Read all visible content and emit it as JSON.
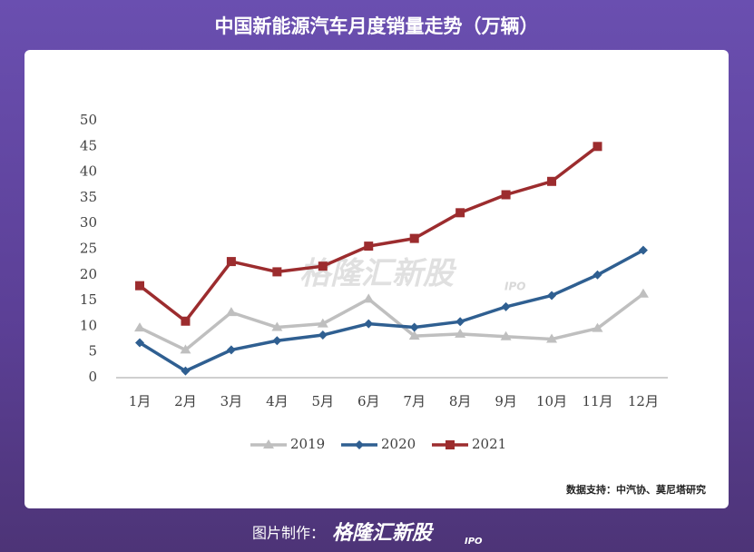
{
  "chart_data": {
    "type": "line",
    "title": "中国新能源汽车月度销量走势（万辆）",
    "categories": [
      "1月",
      "2月",
      "3月",
      "4月",
      "5月",
      "6月",
      "7月",
      "8月",
      "9月",
      "10月",
      "11月",
      "12月"
    ],
    "series": [
      {
        "name": "2019",
        "color": "#bfbfbf",
        "marker": "triangle",
        "values": [
          9.7,
          5.4,
          12.7,
          9.8,
          10.5,
          15.3,
          8.1,
          8.5,
          8.0,
          7.5,
          9.6,
          16.3
        ]
      },
      {
        "name": "2020",
        "color": "#2f5f91",
        "marker": "diamond",
        "values": [
          6.8,
          1.3,
          5.4,
          7.2,
          8.3,
          10.5,
          9.8,
          10.9,
          13.8,
          16.0,
          20.0,
          24.8
        ]
      },
      {
        "name": "2021",
        "color": "#9c2c2e",
        "marker": "square",
        "values": [
          17.9,
          11.0,
          22.6,
          20.6,
          21.7,
          25.6,
          27.1,
          32.1,
          35.6,
          38.2,
          45.0,
          null
        ]
      }
    ],
    "ylim": [
      0,
      50
    ],
    "yticks": [
      0,
      5,
      10,
      15,
      20,
      25,
      30,
      35,
      40,
      45,
      50
    ],
    "grid": false,
    "legend": "bottom",
    "source": "数据支持：中汽协、莫尼塔研究",
    "watermark": {
      "brand": "格隆汇新股",
      "tag": "IPO"
    }
  },
  "footer": {
    "label": "图片制作：",
    "brand": "格隆汇新股",
    "tag": "IPO"
  }
}
